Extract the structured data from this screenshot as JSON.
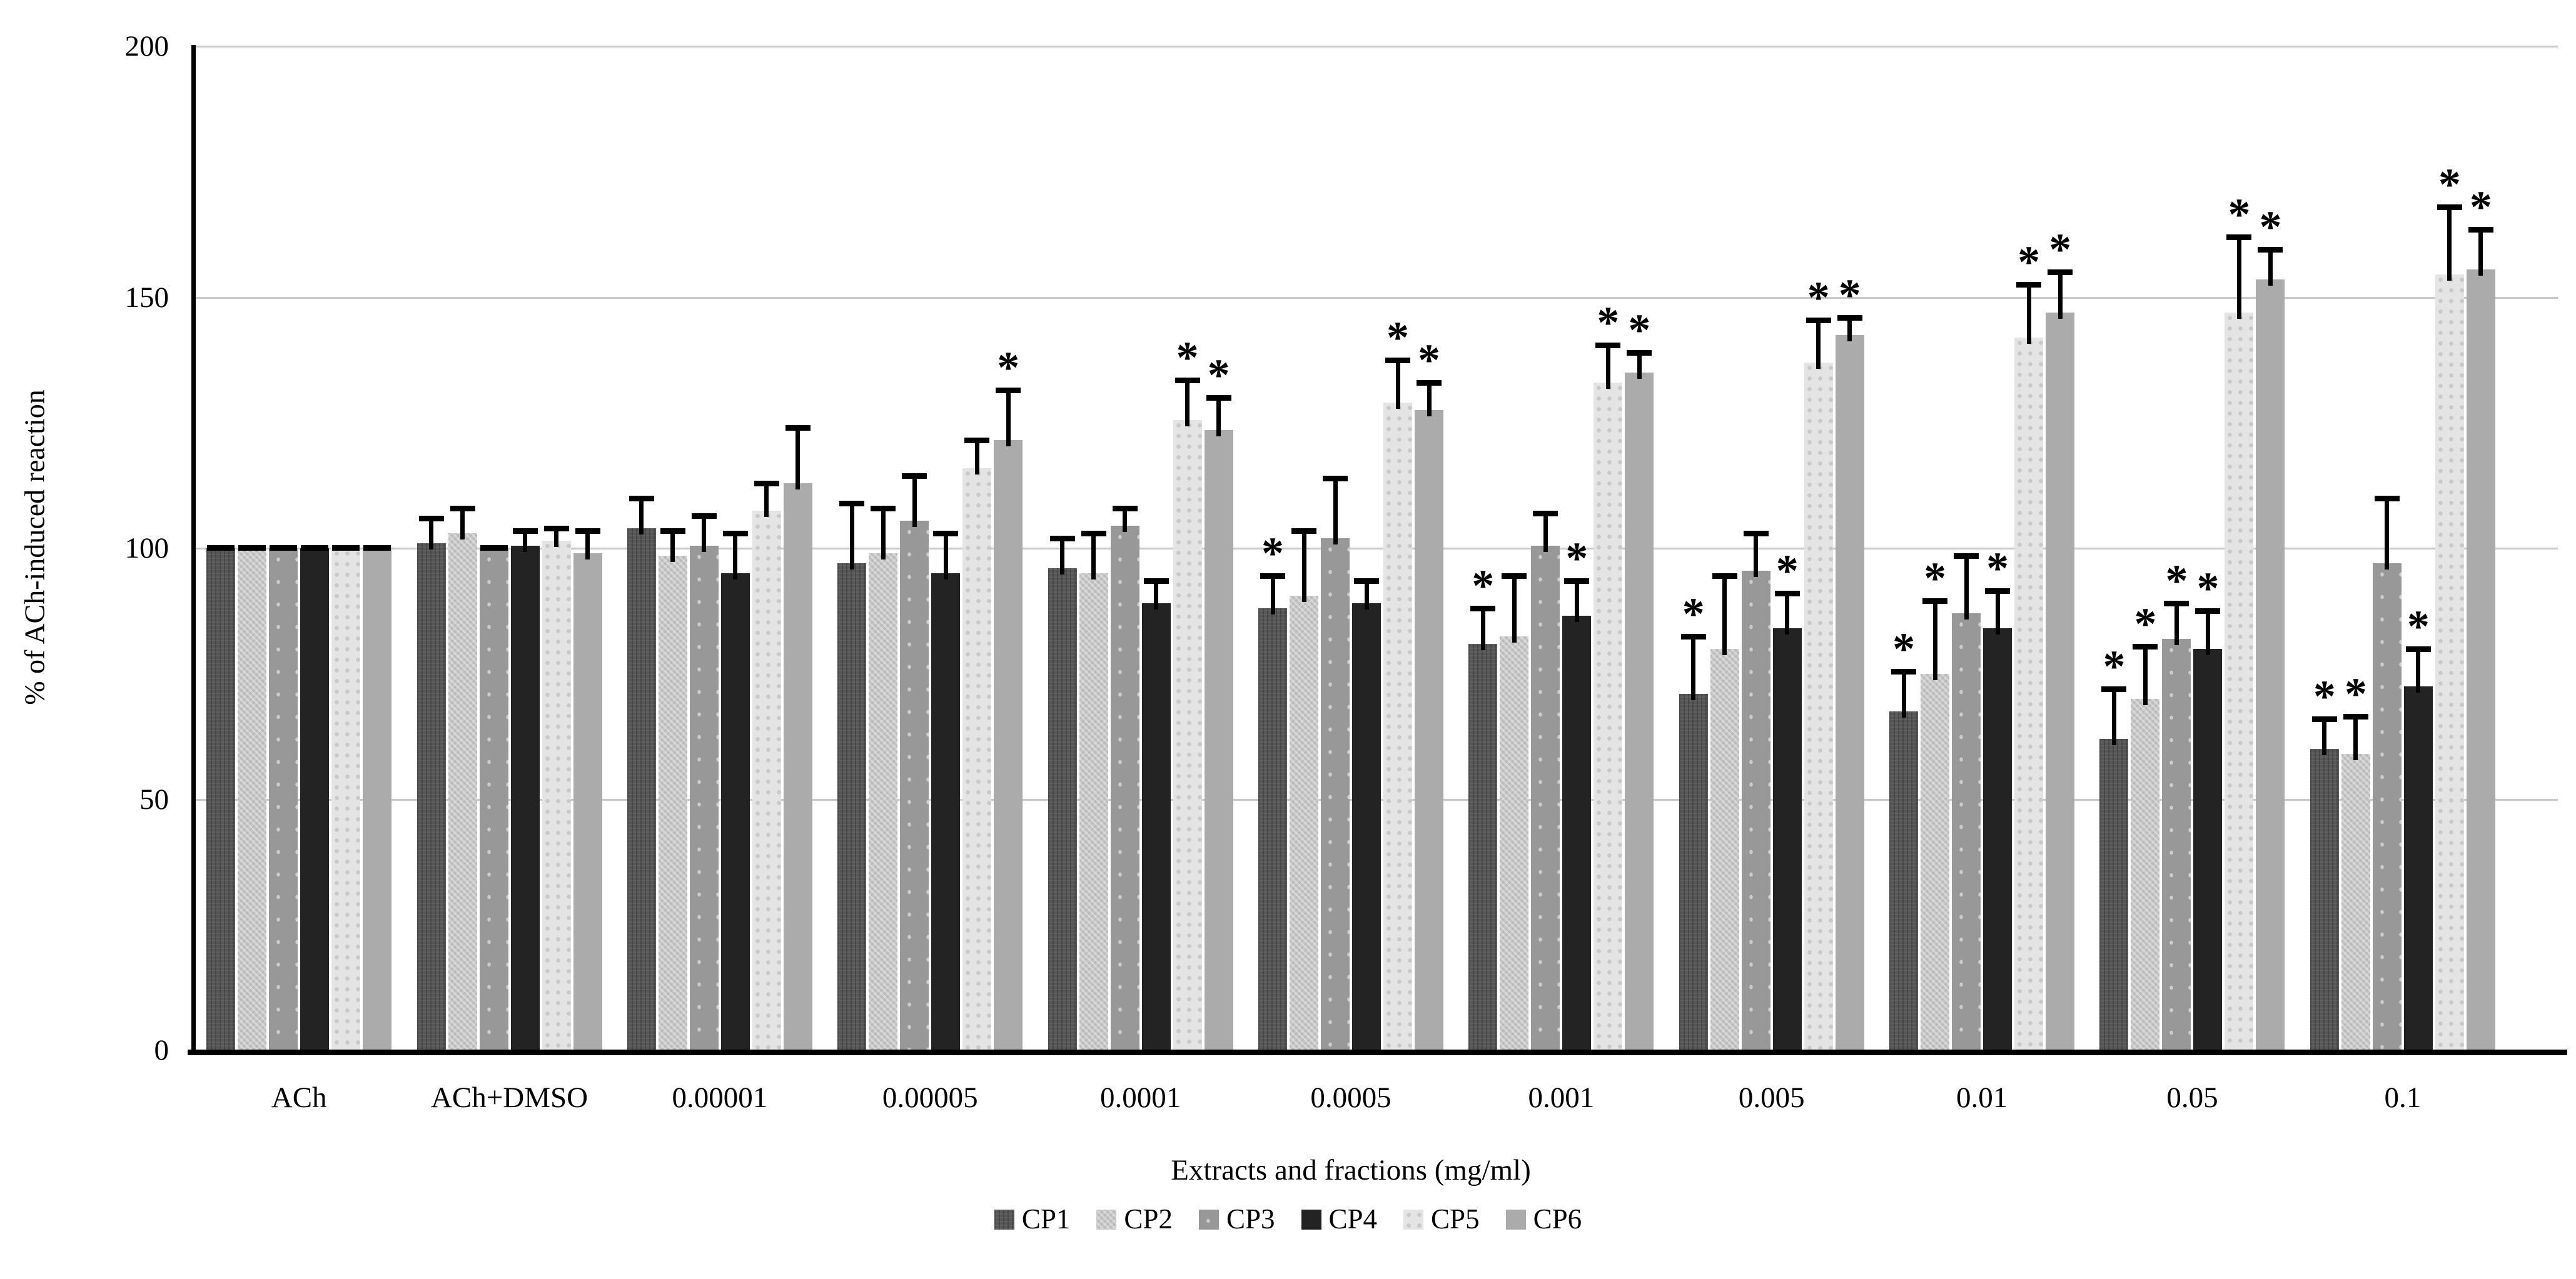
{
  "page": {
    "background": "#ffffff"
  },
  "chart_data": {
    "type": "bar",
    "title": "",
    "xlabel": "Extracts and fractions (mg/ml)",
    "ylabel": "% of ACh-induced reaction",
    "ylim": [
      0,
      200
    ],
    "yticks": [
      0,
      50,
      100,
      150,
      200
    ],
    "grid": "horizontal",
    "gridline_color": "#c9c9c9",
    "axis_color": "#000000",
    "significance_marker": "*",
    "legend_position": "bottom-center",
    "error_bars": "upper-only",
    "categories": [
      "ACh",
      "ACh+DMSO",
      "0.00001",
      "0.00005",
      "0.0001",
      "0.0005",
      "0.001",
      "0.005",
      "0.01",
      "0.05",
      "0.1"
    ],
    "series": [
      {
        "name": "CP1",
        "color": "#575757",
        "pattern": "weave-dark",
        "values": [
          100,
          101,
          104,
          97,
          96,
          88,
          81,
          71,
          67.5,
          62,
          60
        ],
        "errors_plus": [
          0,
          5,
          6,
          12,
          6,
          6.5,
          7,
          11.5,
          8,
          10,
          6
        ],
        "significant": [
          0,
          0,
          0,
          0,
          0,
          1,
          1,
          1,
          1,
          1,
          1
        ]
      },
      {
        "name": "CP2",
        "color": "#c6c6c6",
        "pattern": "checker-light",
        "values": [
          100,
          103,
          98.5,
          99,
          95,
          90.5,
          82.5,
          80,
          75,
          70,
          59
        ],
        "errors_plus": [
          0,
          5,
          5,
          9,
          8,
          13,
          12,
          14.5,
          14.5,
          10.5,
          7.5
        ],
        "significant": [
          0,
          0,
          0,
          0,
          0,
          0,
          0,
          0,
          1,
          1,
          1
        ]
      },
      {
        "name": "CP3",
        "color": "#989898",
        "pattern": "dotted-mid",
        "values": [
          100,
          100,
          100.5,
          105.5,
          104.5,
          102,
          100.5,
          95.5,
          87,
          82,
          97
        ],
        "errors_plus": [
          0,
          0,
          6,
          9,
          3.5,
          12,
          6.5,
          7.5,
          11.5,
          7,
          13
        ],
        "significant": [
          0,
          0,
          0,
          0,
          0,
          0,
          0,
          0,
          0,
          1,
          0
        ]
      },
      {
        "name": "CP4",
        "color": "#232323",
        "pattern": "solid-dark",
        "values": [
          100,
          100.5,
          95,
          95,
          89,
          89,
          86.5,
          84,
          84,
          80,
          72.5
        ],
        "errors_plus": [
          0,
          3,
          8,
          8,
          4.5,
          4.5,
          7,
          7,
          7.5,
          7.5,
          7.5
        ],
        "significant": [
          0,
          0,
          0,
          0,
          0,
          0,
          1,
          1,
          1,
          1,
          1
        ]
      },
      {
        "name": "CP5",
        "color": "#e4e4e4",
        "pattern": "dotted-light",
        "values": [
          100,
          101.5,
          107.5,
          116,
          125.5,
          129,
          133,
          137,
          142,
          147,
          154.5
        ],
        "errors_plus": [
          0,
          2.5,
          5.5,
          5.5,
          8,
          8.5,
          7.5,
          8.5,
          10.5,
          15,
          13.5
        ],
        "significant": [
          0,
          0,
          0,
          0,
          1,
          1,
          1,
          1,
          1,
          1,
          1
        ]
      },
      {
        "name": "CP6",
        "color": "#ababab",
        "pattern": "solid-mid",
        "values": [
          100,
          99,
          113,
          121.5,
          123.5,
          127.5,
          135,
          142.5,
          147,
          153.5,
          155.5
        ],
        "errors_plus": [
          0,
          4.5,
          11,
          10,
          6.5,
          5.5,
          4,
          3.5,
          8,
          6,
          8
        ],
        "significant": [
          0,
          0,
          0,
          1,
          1,
          1,
          1,
          1,
          1,
          1,
          1
        ]
      }
    ]
  }
}
